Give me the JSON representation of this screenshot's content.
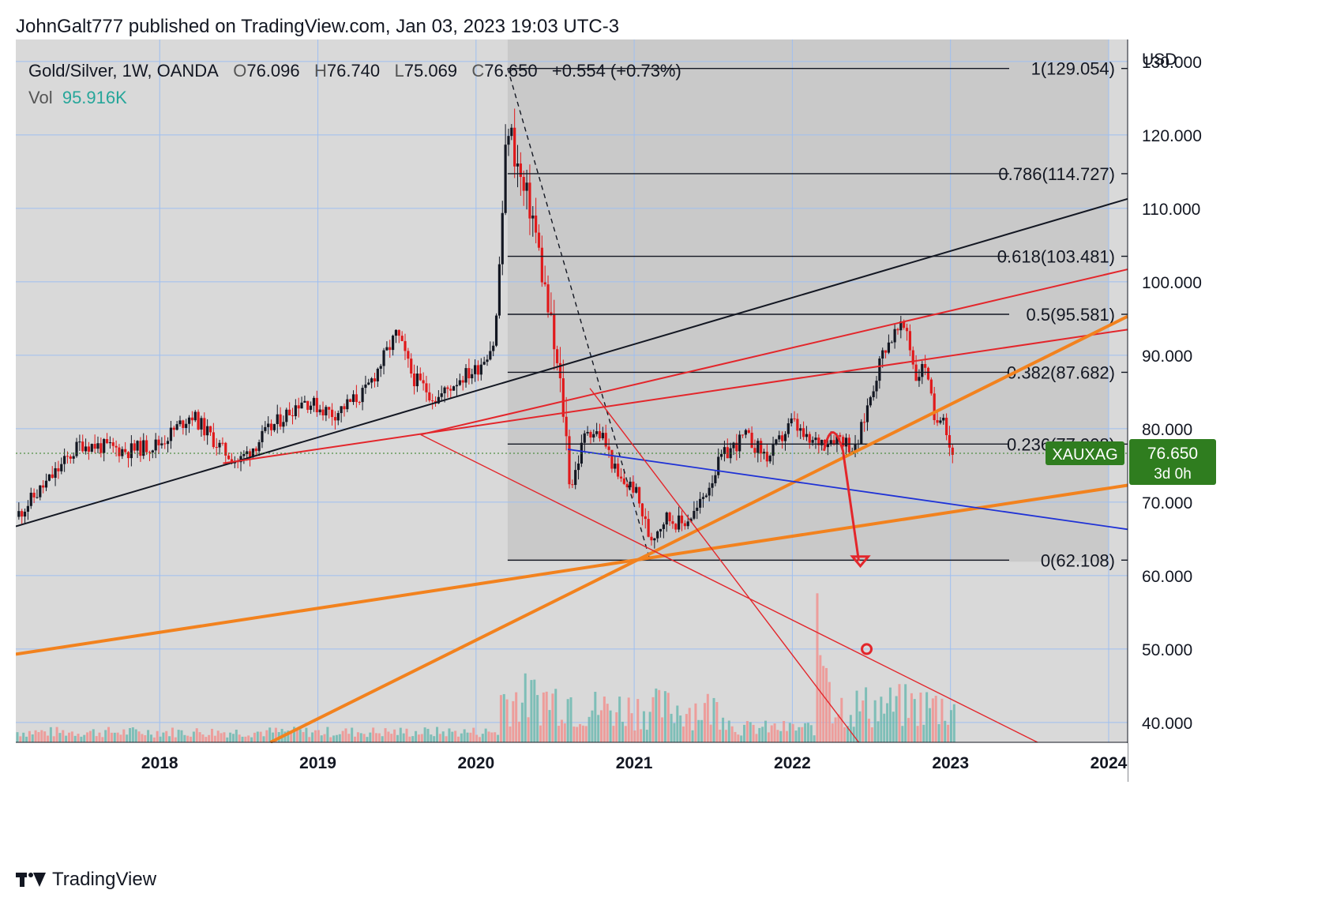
{
  "header": {
    "publisher_line": "JohnGalt777 published on TradingView.com, Jan 03, 2023 19:03 UTC-3"
  },
  "legend": {
    "symbol": "Gold/Silver, 1W, OANDA",
    "open_label": "O",
    "open": "76.096",
    "high_label": "H",
    "high": "76.740",
    "low_label": "L",
    "low": "75.069",
    "close_label": "C",
    "close": "76.650",
    "change": "+0.554 (+0.73%)",
    "vol_label": "Vol",
    "vol_value": "95.916K"
  },
  "price_tag": {
    "ticker": "XAUXAG",
    "price": "76.650",
    "countdown": "3d 0h"
  },
  "brand": "TradingView",
  "colors": {
    "background": "#ffffff",
    "plot_bg": "#d9d9d9",
    "shade_bg": "#c9c9c9",
    "grid": "#9fbff0",
    "candle_up": "#131722",
    "candle_down": "#e0191b",
    "orange": "#f2821e",
    "red_line": "#e3262b",
    "blue_line": "#1f32d6",
    "price_tag": "#2f7d1f",
    "vol_up": "#6db8b0",
    "vol_down": "#f0928f"
  },
  "chart_data": {
    "type": "candlestick",
    "title": "Gold/Silver, 1W, OANDA",
    "currency_label": "USD",
    "y_ticks": [
      "130.000",
      "120.000",
      "110.000",
      "100.000",
      "90.000",
      "80.000",
      "70.000",
      "60.000",
      "50.000",
      "40.000"
    ],
    "y_tick_values": [
      130,
      120,
      110,
      100,
      90,
      80,
      70,
      60,
      50,
      40
    ],
    "ylim": [
      37.3,
      133
    ],
    "x_ticks": [
      "2018",
      "2019",
      "2020",
      "2021",
      "2022",
      "2023",
      "2024"
    ],
    "x_tick_years": [
      2018,
      2019,
      2020,
      2021,
      2022,
      2023,
      2024
    ],
    "xlim": [
      2017.09,
      2024.12
    ],
    "fib_levels": [
      {
        "label": "1(129.054)",
        "value": 129.054
      },
      {
        "label": "0.786(114.727)",
        "value": 114.727
      },
      {
        "label": "0.618(103.481)",
        "value": 103.481
      },
      {
        "label": "0.5(95.581)",
        "value": 95.581
      },
      {
        "label": "0.382(87.682)",
        "value": 87.682
      },
      {
        "label": "0.236(77.908)",
        "value": 77.908
      },
      {
        "label": "0(62.108)",
        "value": 62.108
      }
    ],
    "fib_range": {
      "start": 2020.2,
      "end": 2024.0
    },
    "last_price": 76.65,
    "price_path": [
      [
        2017.09,
        68
      ],
      [
        2017.3,
        73
      ],
      [
        2017.5,
        78
      ],
      [
        2017.8,
        77
      ],
      [
        2018.0,
        78
      ],
      [
        2018.2,
        82
      ],
      [
        2018.4,
        77
      ],
      [
        2018.5,
        75.5
      ],
      [
        2018.7,
        80
      ],
      [
        2018.9,
        84
      ],
      [
        2019.1,
        82
      ],
      [
        2019.3,
        85
      ],
      [
        2019.5,
        93
      ],
      [
        2019.6,
        87
      ],
      [
        2019.75,
        84
      ],
      [
        2019.9,
        87
      ],
      [
        2020.0,
        88
      ],
      [
        2020.12,
        92
      ],
      [
        2020.2,
        122
      ],
      [
        2020.3,
        112
      ],
      [
        2020.35,
        110
      ],
      [
        2020.45,
        97
      ],
      [
        2020.55,
        83
      ],
      [
        2020.6,
        72
      ],
      [
        2020.7,
        80
      ],
      [
        2020.8,
        79
      ],
      [
        2020.9,
        73
      ],
      [
        2021.0,
        72
      ],
      [
        2021.1,
        65
      ],
      [
        2021.2,
        68
      ],
      [
        2021.3,
        67
      ],
      [
        2021.4,
        69
      ],
      [
        2021.55,
        76
      ],
      [
        2021.7,
        79
      ],
      [
        2021.85,
        76
      ],
      [
        2022.0,
        81
      ],
      [
        2022.1,
        78
      ],
      [
        2022.3,
        79
      ],
      [
        2022.4,
        77
      ],
      [
        2022.5,
        85
      ],
      [
        2022.58,
        91
      ],
      [
        2022.65,
        93
      ],
      [
        2022.72,
        94
      ],
      [
        2022.78,
        87
      ],
      [
        2022.85,
        89
      ],
      [
        2022.9,
        80
      ],
      [
        2022.95,
        83
      ],
      [
        2023.0,
        77
      ],
      [
        2023.02,
        76.65
      ]
    ],
    "trend_lines": [
      {
        "color": "black",
        "from": [
          2017.09,
          66.7
        ],
        "to": [
          2024.12,
          111.3
        ]
      },
      {
        "color": "red",
        "from": [
          2018.4,
          75.3
        ],
        "to": [
          2024.12,
          93.5
        ]
      },
      {
        "color": "red",
        "from": [
          2019.65,
          79.2
        ],
        "to": [
          2024.12,
          101.7
        ]
      },
      {
        "color": "orange",
        "from": [
          2017.09,
          49.3
        ],
        "to": [
          2024.12,
          72.3
        ]
      },
      {
        "color": "orange",
        "from": [
          2018.7,
          37.3
        ],
        "to": [
          2024.12,
          95.3
        ]
      },
      {
        "color": "blue",
        "from": [
          2020.58,
          77.2
        ],
        "to": [
          2024.12,
          66.3
        ]
      },
      {
        "color": "red_thin",
        "from": [
          2019.65,
          79.2
        ],
        "to": [
          2023.55,
          37.3
        ]
      },
      {
        "color": "red_thin",
        "from": [
          2020.72,
          85.5
        ],
        "to": [
          2022.42,
          37.3
        ]
      }
    ]
  }
}
